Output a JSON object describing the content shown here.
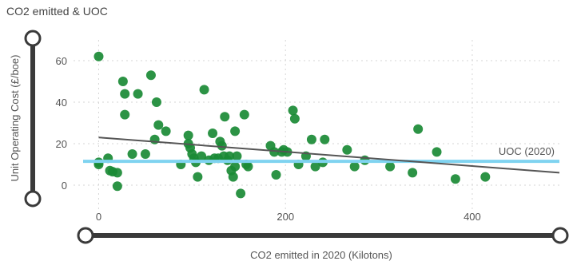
{
  "chart_data": {
    "type": "scatter",
    "title": "CO2 emitted & UOC",
    "xlabel": "CO2 emitted in 2020 (Kilotons)",
    "ylabel": "Unit Operating Cost (£/boe)",
    "xlim": [
      -10,
      500
    ],
    "ylim": [
      -10,
      70
    ],
    "x_ticks": [
      0,
      200,
      400
    ],
    "y_ticks": [
      0,
      20,
      40,
      60
    ],
    "grid": true,
    "point_color": "#1a8a35",
    "points": [
      {
        "x": 0,
        "y": 62
      },
      {
        "x": 0,
        "y": 11
      },
      {
        "x": 0,
        "y": 10
      },
      {
        "x": 10,
        "y": 13
      },
      {
        "x": 12,
        "y": 7
      },
      {
        "x": 15,
        "y": 6.5
      },
      {
        "x": 20,
        "y": 6
      },
      {
        "x": 20,
        "y": -0.5
      },
      {
        "x": 26,
        "y": 50
      },
      {
        "x": 28,
        "y": 44
      },
      {
        "x": 28,
        "y": 34
      },
      {
        "x": 36,
        "y": 15
      },
      {
        "x": 42,
        "y": 44
      },
      {
        "x": 50,
        "y": 15
      },
      {
        "x": 56,
        "y": 53
      },
      {
        "x": 60,
        "y": 22
      },
      {
        "x": 62,
        "y": 40
      },
      {
        "x": 64,
        "y": 29
      },
      {
        "x": 72,
        "y": 26
      },
      {
        "x": 88,
        "y": 10
      },
      {
        "x": 96,
        "y": 24
      },
      {
        "x": 96,
        "y": 20
      },
      {
        "x": 98,
        "y": 18
      },
      {
        "x": 100,
        "y": 15
      },
      {
        "x": 102,
        "y": 13
      },
      {
        "x": 104,
        "y": 11
      },
      {
        "x": 106,
        "y": 4
      },
      {
        "x": 110,
        "y": 14
      },
      {
        "x": 113,
        "y": 46
      },
      {
        "x": 118,
        "y": 12
      },
      {
        "x": 122,
        "y": 25
      },
      {
        "x": 124,
        "y": 13
      },
      {
        "x": 128,
        "y": 13
      },
      {
        "x": 130,
        "y": 21
      },
      {
        "x": 132,
        "y": 19
      },
      {
        "x": 134,
        "y": 14
      },
      {
        "x": 135,
        "y": 33
      },
      {
        "x": 138,
        "y": 12
      },
      {
        "x": 140,
        "y": 14
      },
      {
        "x": 142,
        "y": 7
      },
      {
        "x": 144,
        "y": 4
      },
      {
        "x": 146,
        "y": 9
      },
      {
        "x": 146,
        "y": 26
      },
      {
        "x": 148,
        "y": 14
      },
      {
        "x": 152,
        "y": -4
      },
      {
        "x": 156,
        "y": 34
      },
      {
        "x": 158,
        "y": 10
      },
      {
        "x": 160,
        "y": 9
      },
      {
        "x": 184,
        "y": 19
      },
      {
        "x": 188,
        "y": 16
      },
      {
        "x": 190,
        "y": 5
      },
      {
        "x": 196,
        "y": 16
      },
      {
        "x": 198,
        "y": 17
      },
      {
        "x": 202,
        "y": 16
      },
      {
        "x": 208,
        "y": 36
      },
      {
        "x": 210,
        "y": 32
      },
      {
        "x": 214,
        "y": 10
      },
      {
        "x": 222,
        "y": 14
      },
      {
        "x": 228,
        "y": 22
      },
      {
        "x": 232,
        "y": 9
      },
      {
        "x": 240,
        "y": 11
      },
      {
        "x": 242,
        "y": 22
      },
      {
        "x": 266,
        "y": 17
      },
      {
        "x": 274,
        "y": 9
      },
      {
        "x": 285,
        "y": 12
      },
      {
        "x": 312,
        "y": 9
      },
      {
        "x": 336,
        "y": 6
      },
      {
        "x": 342,
        "y": 27
      },
      {
        "x": 362,
        "y": 16
      },
      {
        "x": 382,
        "y": 3
      },
      {
        "x": 414,
        "y": 4
      }
    ],
    "trendline": {
      "x": [
        0,
        500
      ],
      "y": [
        23,
        6
      ],
      "color": "#555555"
    },
    "reference_line": {
      "label": "UOC (2020)",
      "y": 11.5,
      "color": "#7fd3f0"
    }
  }
}
